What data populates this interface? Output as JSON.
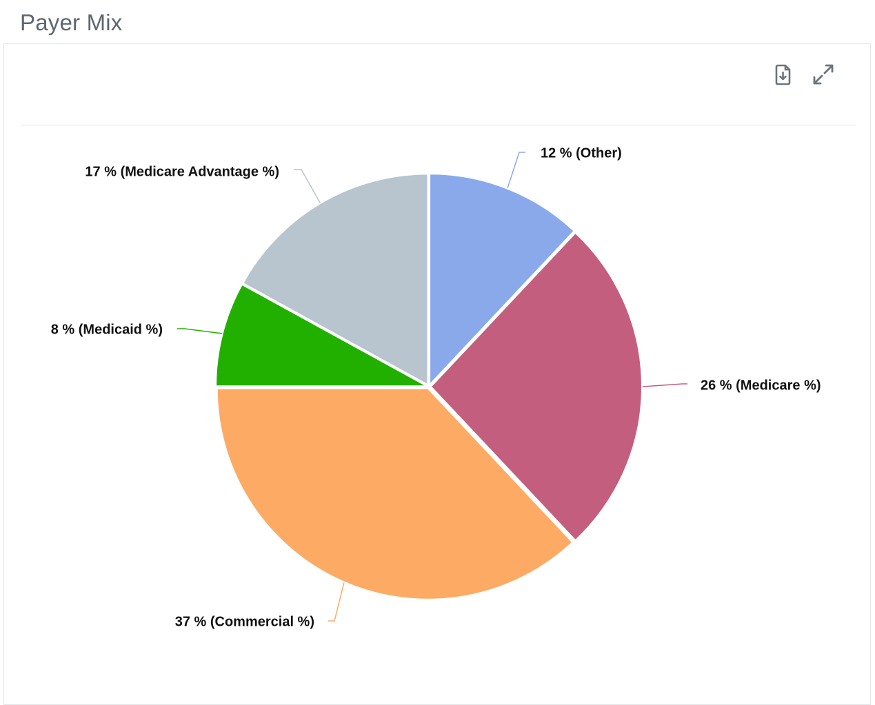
{
  "header": {
    "title": "Payer Mix"
  },
  "toolbar": {
    "download_icon": "file-download-icon",
    "expand_icon": "expand-arrows-icon",
    "icon_color": "#6b737c"
  },
  "chart_data": {
    "type": "pie",
    "start_angle_deg": 0,
    "direction": "clockwise",
    "slices": [
      {
        "name": "Other",
        "value": 12,
        "label": "12 % (Other)",
        "color": "#89a9ea",
        "label_side": "right"
      },
      {
        "name": "Medicare %",
        "value": 26,
        "label": "26 % (Medicare %)",
        "color": "#c45e7e",
        "label_side": "right"
      },
      {
        "name": "Commercial %",
        "value": 37,
        "label": "37 % (Commercial %)",
        "color": "#fdaa65",
        "label_side": "left"
      },
      {
        "name": "Medicaid %",
        "value": 8,
        "label": "8 % (Medicaid %)",
        "color": "#22b000",
        "label_side": "left"
      },
      {
        "name": "Medicare Advantage %",
        "value": 17,
        "label": "17 % (Medicare Advantage %)",
        "color": "#b8c4ce",
        "label_side": "left"
      }
    ],
    "legend": "none",
    "slice_border_color": "#ffffff"
  }
}
